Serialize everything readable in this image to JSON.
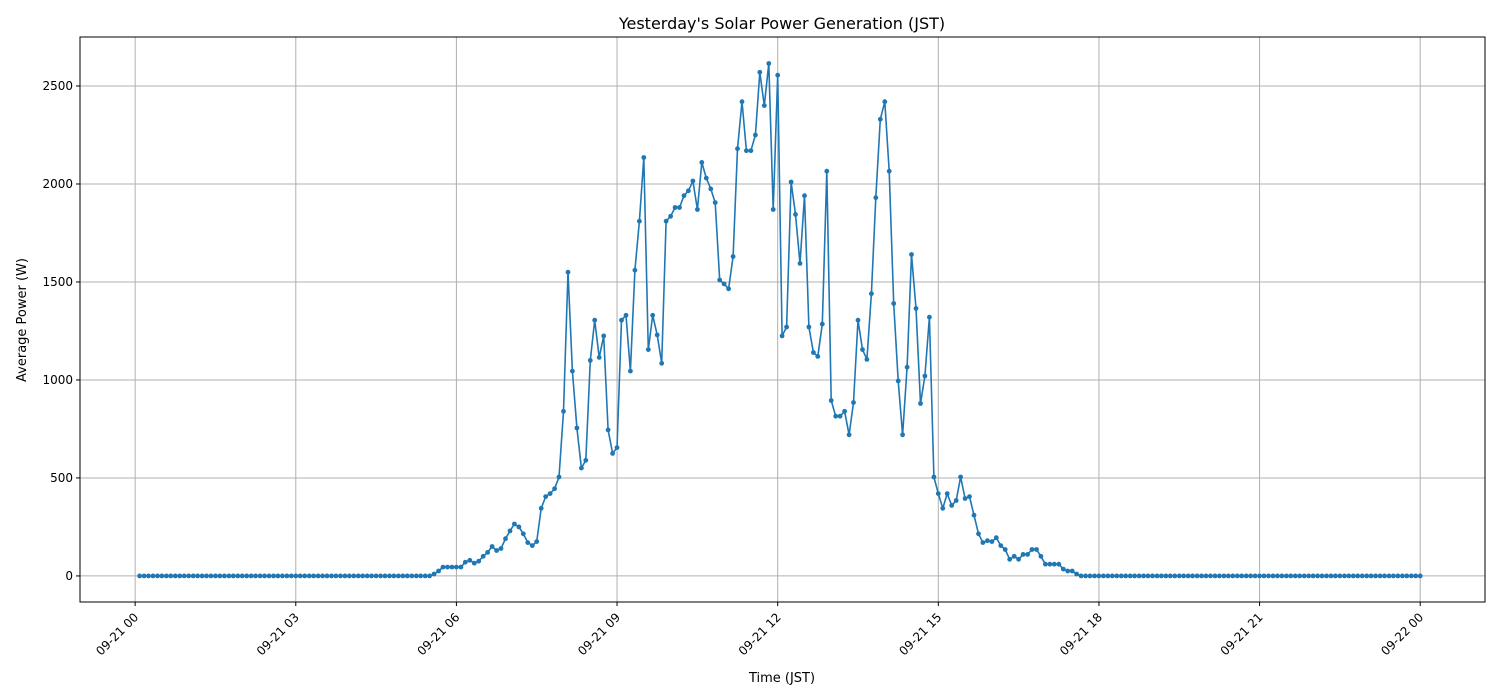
{
  "chart_data": {
    "type": "line",
    "title": "Yesterday's Solar Power Generation (JST)",
    "xlabel": "Time (JST)",
    "ylabel": "Average Power (W)",
    "x_tick_labels": [
      "09-21 00",
      "09-21 03",
      "09-21 06",
      "09-21 09",
      "09-21 12",
      "09-21 15",
      "09-21 18",
      "09-21 21",
      "09-22 00"
    ],
    "x_tick_hours": [
      0,
      3,
      6,
      9,
      12,
      15,
      18,
      21,
      24
    ],
    "y_ticks": [
      0,
      500,
      1000,
      1500,
      2000,
      2500
    ],
    "xlim_hours": [
      -1.03,
      25.21
    ],
    "ylim": [
      -133,
      2750
    ],
    "grid": true,
    "series_color": "#1f77b4",
    "series": [
      {
        "name": "Average Power (W)",
        "start_minutes": 5,
        "interval_minutes": 5,
        "values": [
          0,
          0,
          0,
          0,
          0,
          0,
          0,
          0,
          0,
          0,
          0,
          0,
          0,
          0,
          0,
          0,
          0,
          0,
          0,
          0,
          0,
          0,
          0,
          0,
          0,
          0,
          0,
          0,
          0,
          0,
          0,
          0,
          0,
          0,
          0,
          0,
          0,
          0,
          0,
          0,
          0,
          0,
          0,
          0,
          0,
          0,
          0,
          0,
          0,
          0,
          0,
          0,
          0,
          0,
          0,
          0,
          0,
          0,
          0,
          0,
          0,
          0,
          0,
          0,
          0,
          0,
          10,
          25,
          45,
          45,
          45,
          45,
          45,
          70,
          80,
          65,
          75,
          100,
          120,
          150,
          130,
          140,
          190,
          230,
          265,
          250,
          215,
          170,
          155,
          175,
          345,
          405,
          420,
          445,
          505,
          840,
          1550,
          1045,
          755,
          550,
          590,
          1100,
          1305,
          1115,
          1225,
          745,
          625,
          655,
          1305,
          1330,
          1045,
          1560,
          1810,
          2135,
          1155,
          1330,
          1230,
          1085,
          1810,
          1835,
          1880,
          1880,
          1940,
          1965,
          2015,
          1870,
          2110,
          2030,
          1975,
          1905,
          1510,
          1490,
          1465,
          1630,
          2180,
          2420,
          2170,
          2170,
          2250,
          2570,
          2400,
          2615,
          1870,
          2555,
          1225,
          1270,
          2010,
          1845,
          1595,
          1940,
          1270,
          1140,
          1120,
          1285,
          2065,
          895,
          815,
          815,
          840,
          720,
          885,
          1305,
          1155,
          1105,
          1440,
          1930,
          2330,
          2420,
          2065,
          1390,
          995,
          720,
          1065,
          1640,
          1365,
          880,
          1020,
          1320,
          505,
          420,
          345,
          420,
          360,
          385,
          505,
          395,
          405,
          310,
          215,
          170,
          180,
          175,
          195,
          155,
          135,
          85,
          100,
          85,
          110,
          110,
          135,
          135,
          100,
          60,
          60,
          60,
          60,
          35,
          25,
          25,
          10,
          0,
          0,
          0,
          0,
          0,
          0,
          0,
          0,
          0,
          0,
          0,
          0,
          0,
          0,
          0,
          0,
          0,
          0,
          0,
          0,
          0,
          0,
          0,
          0,
          0,
          0,
          0,
          0,
          0,
          0,
          0,
          0,
          0,
          0,
          0,
          0,
          0,
          0,
          0,
          0,
          0,
          0,
          0,
          0,
          0,
          0,
          0,
          0,
          0,
          0,
          0,
          0,
          0,
          0,
          0,
          0,
          0,
          0,
          0,
          0,
          0,
          0,
          0,
          0,
          0,
          0,
          0,
          0,
          0,
          0,
          0,
          0,
          0,
          0,
          0,
          0,
          0
        ]
      }
    ]
  }
}
